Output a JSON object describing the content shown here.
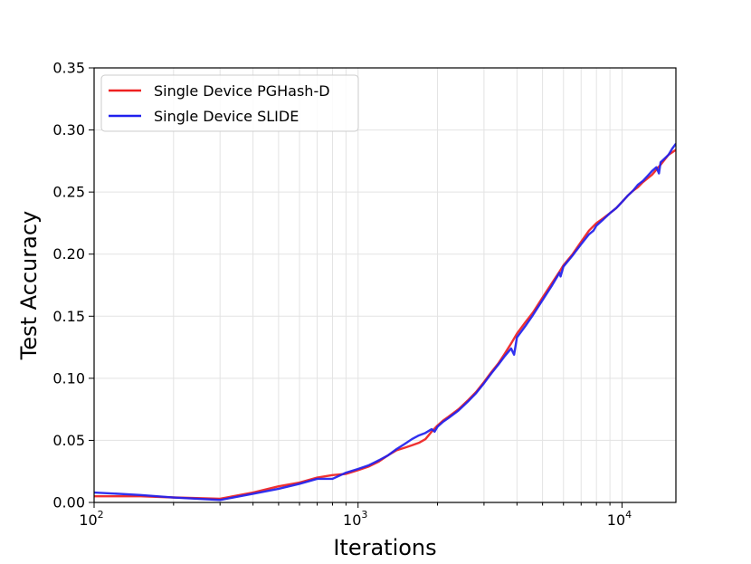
{
  "chart_data": {
    "type": "line",
    "title": "",
    "xlabel": "Iterations",
    "ylabel": "Test Accuracy",
    "xscale": "log",
    "xlim": [
      100,
      16000
    ],
    "ylim": [
      0,
      0.35
    ],
    "grid": true,
    "legend_position": "top-left",
    "x_ticks": [
      {
        "base": "10",
        "exp": "2"
      },
      {
        "base": "10",
        "exp": "3"
      },
      {
        "base": "10",
        "exp": "4"
      }
    ],
    "y_ticks": [
      "0.00",
      "0.05",
      "0.10",
      "0.15",
      "0.20",
      "0.25",
      "0.30",
      "0.35"
    ],
    "series": [
      {
        "name": "Single Device PGHash-D",
        "color": "#ee2020",
        "x": [
          100,
          150,
          200,
          300,
          400,
          500,
          600,
          700,
          800,
          900,
          1000,
          1100,
          1200,
          1300,
          1400,
          1500,
          1600,
          1700,
          1800,
          1900,
          2000,
          2100,
          2200,
          2400,
          2600,
          2800,
          3000,
          3200,
          3400,
          3600,
          3800,
          4000,
          4300,
          4600,
          5000,
          5400,
          5800,
          6000,
          6500,
          7000,
          7500,
          8000,
          8500,
          9000,
          9500,
          10000,
          10500,
          11000,
          11500,
          12000,
          13000,
          14000,
          15000,
          16000
        ],
        "y": [
          0.005,
          0.005,
          0.004,
          0.003,
          0.008,
          0.013,
          0.016,
          0.02,
          0.022,
          0.023,
          0.026,
          0.029,
          0.033,
          0.038,
          0.042,
          0.044,
          0.046,
          0.048,
          0.051,
          0.057,
          0.062,
          0.066,
          0.069,
          0.075,
          0.082,
          0.089,
          0.097,
          0.105,
          0.112,
          0.12,
          0.128,
          0.136,
          0.145,
          0.153,
          0.165,
          0.176,
          0.186,
          0.191,
          0.2,
          0.21,
          0.219,
          0.225,
          0.229,
          0.233,
          0.237,
          0.242,
          0.247,
          0.251,
          0.254,
          0.258,
          0.264,
          0.272,
          0.28,
          0.284
        ]
      },
      {
        "name": "Single Device SLIDE",
        "color": "#2020ee",
        "x": [
          100,
          150,
          200,
          300,
          400,
          500,
          600,
          700,
          800,
          900,
          1000,
          1100,
          1200,
          1300,
          1400,
          1500,
          1600,
          1700,
          1800,
          1900,
          1950,
          2000,
          2100,
          2200,
          2400,
          2600,
          2800,
          3000,
          3200,
          3400,
          3600,
          3800,
          3900,
          4000,
          4300,
          4600,
          5000,
          5400,
          5800,
          5850,
          6000,
          6500,
          7000,
          7500,
          7800,
          8000,
          8500,
          9000,
          9500,
          9700,
          10000,
          10500,
          11000,
          11500,
          12000,
          12500,
          13000,
          13500,
          13800,
          14000,
          14500,
          15000,
          15500,
          16000
        ],
        "y": [
          0.008,
          0.006,
          0.004,
          0.002,
          0.007,
          0.011,
          0.015,
          0.019,
          0.019,
          0.024,
          0.027,
          0.03,
          0.034,
          0.038,
          0.043,
          0.047,
          0.051,
          0.054,
          0.056,
          0.059,
          0.057,
          0.061,
          0.065,
          0.068,
          0.074,
          0.081,
          0.088,
          0.096,
          0.104,
          0.111,
          0.118,
          0.124,
          0.119,
          0.133,
          0.142,
          0.151,
          0.163,
          0.174,
          0.185,
          0.182,
          0.19,
          0.199,
          0.208,
          0.216,
          0.219,
          0.223,
          0.228,
          0.233,
          0.237,
          0.239,
          0.242,
          0.247,
          0.251,
          0.256,
          0.259,
          0.263,
          0.267,
          0.27,
          0.265,
          0.274,
          0.277,
          0.28,
          0.285,
          0.289
        ]
      }
    ]
  }
}
